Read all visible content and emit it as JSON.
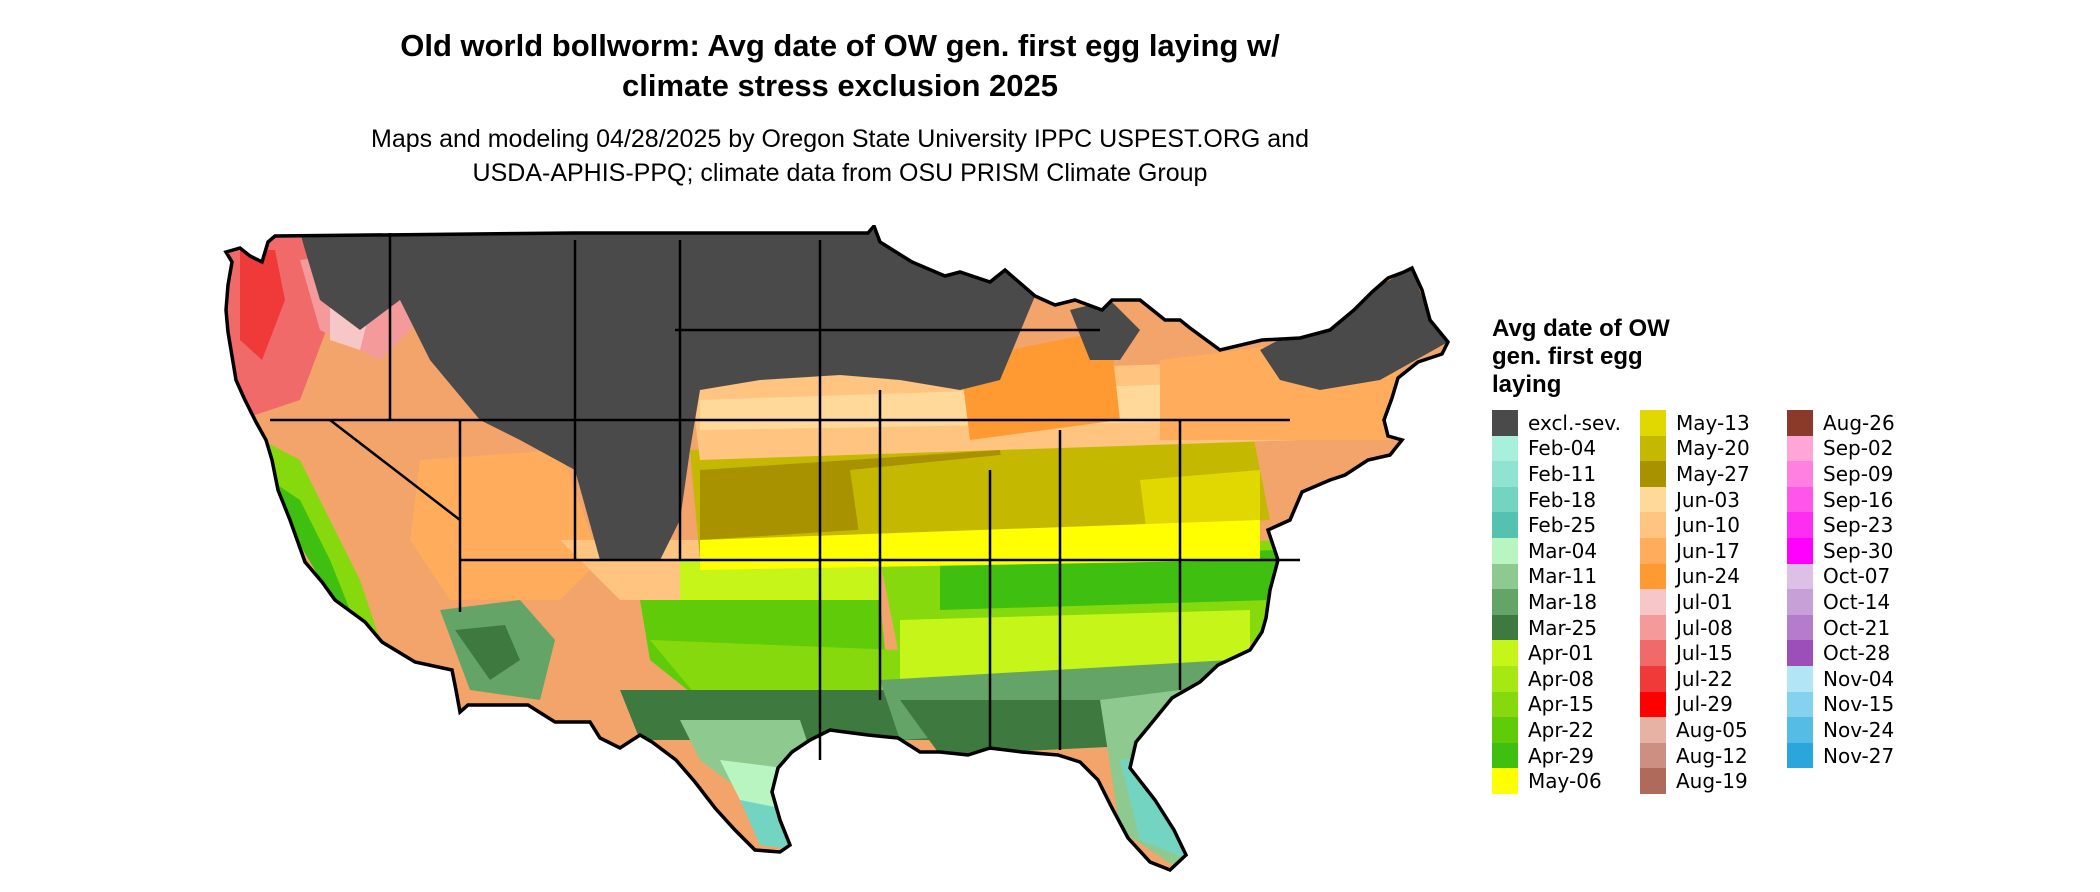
{
  "title_line1": "Old world bollworm: Avg date of OW gen. first egg laying w/",
  "title_line2": "climate stress exclusion 2025",
  "subtitle_line1": "Maps and modeling 04/28/2025 by Oregon State University IPPC USPEST.ORG and",
  "subtitle_line2": "USDA-APHIS-PPQ; climate data from OSU PRISM Climate Group",
  "legend": {
    "title_lines": [
      "Avg date of OW",
      "gen. first egg",
      "laying"
    ],
    "columns": [
      [
        {
          "label": "excl.-sev.",
          "color": "#4a4a4a"
        },
        {
          "label": "Feb-04",
          "color": "#a8f0dc"
        },
        {
          "label": "Feb-11",
          "color": "#8fe3d0"
        },
        {
          "label": "Feb-18",
          "color": "#74d4c2"
        },
        {
          "label": "Feb-25",
          "color": "#55c2b1"
        },
        {
          "label": "Mar-04",
          "color": "#b8f5c0"
        },
        {
          "label": "Mar-11",
          "color": "#8ec98f"
        },
        {
          "label": "Mar-18",
          "color": "#65a467"
        },
        {
          "label": "Mar-25",
          "color": "#3e7a3f"
        },
        {
          "label": "Apr-01",
          "color": "#c6f51a"
        },
        {
          "label": "Apr-08",
          "color": "#a6e812"
        },
        {
          "label": "Apr-15",
          "color": "#86d90c"
        },
        {
          "label": "Apr-22",
          "color": "#60cb08"
        },
        {
          "label": "Apr-29",
          "color": "#3fbf10"
        },
        {
          "label": "May-06",
          "color": "#ffff00"
        }
      ],
      [
        {
          "label": "May-13",
          "color": "#e0d800"
        },
        {
          "label": "May-20",
          "color": "#c4b800"
        },
        {
          "label": "May-27",
          "color": "#a89200"
        },
        {
          "label": "Jun-03",
          "color": "#ffd99a"
        },
        {
          "label": "Jun-10",
          "color": "#ffc47f"
        },
        {
          "label": "Jun-17",
          "color": "#ffad5c"
        },
        {
          "label": "Jun-24",
          "color": "#ff9a33"
        },
        {
          "label": "Jul-01",
          "color": "#f7c6c6"
        },
        {
          "label": "Jul-08",
          "color": "#f49a9a"
        },
        {
          "label": "Jul-15",
          "color": "#f06a6a"
        },
        {
          "label": "Jul-22",
          "color": "#f03a3a"
        },
        {
          "label": "Jul-29",
          "color": "#ff0000"
        },
        {
          "label": "Aug-05",
          "color": "#e6b2a4"
        },
        {
          "label": "Aug-12",
          "color": "#cc8f82"
        },
        {
          "label": "Aug-19",
          "color": "#b06a5c"
        }
      ],
      [
        {
          "label": "Aug-26",
          "color": "#8b3a2a"
        },
        {
          "label": "Sep-02",
          "color": "#ffa6d6"
        },
        {
          "label": "Sep-09",
          "color": "#ff80e0"
        },
        {
          "label": "Sep-16",
          "color": "#ff55ea"
        },
        {
          "label": "Sep-23",
          "color": "#ff2df2"
        },
        {
          "label": "Sep-30",
          "color": "#ff00ff"
        },
        {
          "label": "Oct-07",
          "color": "#dcc0e6"
        },
        {
          "label": "Oct-14",
          "color": "#c8a0d8"
        },
        {
          "label": "Oct-21",
          "color": "#b47ccb"
        },
        {
          "label": "Oct-28",
          "color": "#9c4fb8"
        },
        {
          "label": "Nov-04",
          "color": "#b2e6f7"
        },
        {
          "label": "Nov-15",
          "color": "#85d2ef"
        },
        {
          "label": "Nov-24",
          "color": "#55bce6"
        },
        {
          "label": "Nov-27",
          "color": "#2aa6dc"
        }
      ]
    ]
  }
}
